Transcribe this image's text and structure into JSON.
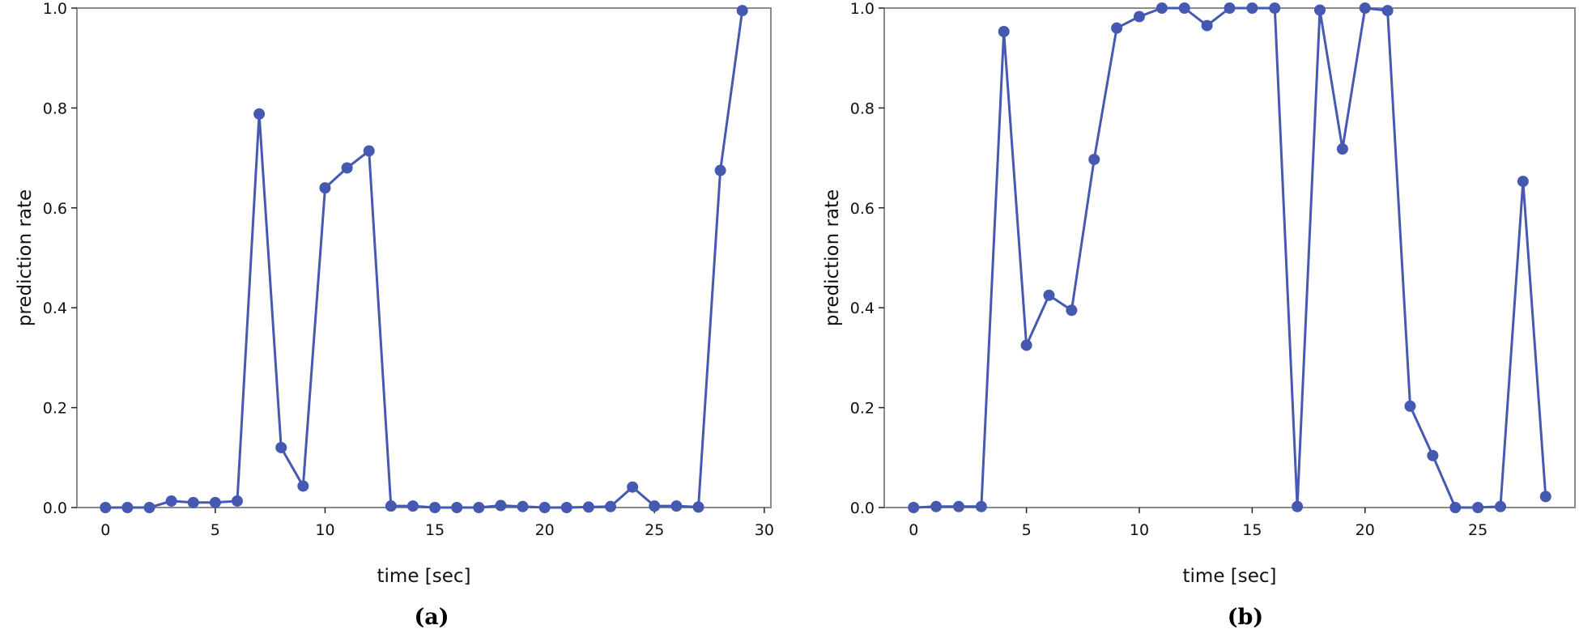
{
  "chart_data": [
    {
      "type": "line",
      "panel_label": "(a)",
      "xlabel": "time [sec]",
      "ylabel": "prediction rate",
      "xlim": [
        -1.3,
        30.3
      ],
      "ylim": [
        0,
        1
      ],
      "xticks": [
        0,
        5,
        10,
        15,
        20,
        25,
        30
      ],
      "yticks": [
        0.0,
        0.2,
        0.4,
        0.6,
        0.8,
        1.0
      ],
      "ytick_labels": [
        "0.0",
        "0.2",
        "0.4",
        "0.6",
        "0.8",
        "1.0"
      ],
      "grid": false,
      "series": [
        {
          "color": "#4659b0",
          "x": [
            0,
            1,
            2,
            3,
            4,
            5,
            6,
            7,
            8,
            9,
            10,
            11,
            12,
            13,
            14,
            15,
            16,
            17,
            18,
            19,
            20,
            21,
            22,
            23,
            24,
            25,
            26,
            27,
            28,
            29
          ],
          "y": [
            0.0,
            0.0,
            0.0,
            0.013,
            0.01,
            0.01,
            0.013,
            0.788,
            0.12,
            0.043,
            0.64,
            0.68,
            0.714,
            0.003,
            0.003,
            0.0,
            0.0,
            0.0,
            0.004,
            0.002,
            0.0,
            0.0,
            0.001,
            0.002,
            0.041,
            0.003,
            0.003,
            0.001,
            0.675,
            0.995
          ]
        }
      ]
    },
    {
      "type": "line",
      "panel_label": "(b)",
      "xlabel": "time [sec]",
      "ylabel": "prediction rate",
      "xlim": [
        -1.3,
        29.3
      ],
      "ylim": [
        0,
        1
      ],
      "xticks": [
        0,
        5,
        10,
        15,
        20,
        25
      ],
      "yticks": [
        0.0,
        0.2,
        0.4,
        0.6,
        0.8,
        1.0
      ],
      "ytick_labels": [
        "0.0",
        "0.2",
        "0.4",
        "0.6",
        "0.8",
        "1.0"
      ],
      "grid": false,
      "series": [
        {
          "color": "#4659b0",
          "x": [
            0,
            1,
            2,
            3,
            4,
            5,
            6,
            7,
            8,
            9,
            10,
            11,
            12,
            13,
            14,
            15,
            16,
            17,
            18,
            19,
            20,
            21,
            22,
            23,
            24,
            25,
            26,
            27,
            28
          ],
          "y": [
            0.0,
            0.002,
            0.002,
            0.002,
            0.953,
            0.325,
            0.425,
            0.395,
            0.697,
            0.96,
            0.983,
            1.0,
            1.0,
            0.965,
            1.0,
            1.0,
            1.0,
            0.002,
            0.996,
            0.718,
            1.0,
            0.995,
            0.203,
            0.104,
            0.0,
            0.0,
            0.002,
            0.653,
            0.022
          ]
        }
      ]
    }
  ]
}
